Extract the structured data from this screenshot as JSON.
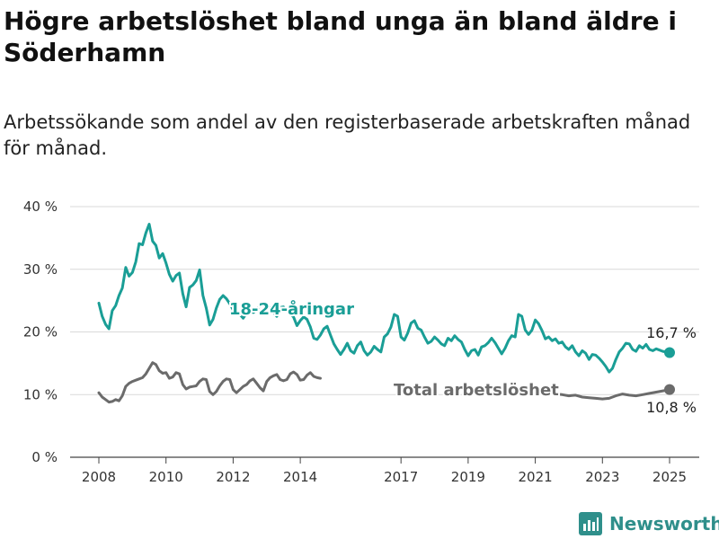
{
  "header": {
    "title": "Högre arbetslöshet bland unga än bland äldre i Söderhamn",
    "subtitle": "Arbetssökande som andel av den registerbaserade arbetskraften månad för månad."
  },
  "logo": {
    "text": "Newsworthy",
    "icon": "bar-chart-icon",
    "color": "#2f8f8b"
  },
  "chart_data": {
    "type": "line",
    "title": "Högre arbetslöshet bland unga än bland äldre i Söderhamn",
    "subtitle": "Arbetssökande som andel av den registerbaserade arbetskraften månad för månad.",
    "ylim": [
      0,
      40
    ],
    "yticks": [
      0,
      10,
      20,
      30,
      40
    ],
    "ytick_labels": [
      "0 %",
      "10 %",
      "20 %",
      "30 %",
      "40 %"
    ],
    "xlim": [
      2008.0,
      2025.0
    ],
    "xticks": [
      2008,
      2010,
      2012,
      2014,
      2017,
      2019,
      2021,
      2023,
      2025
    ],
    "xtick_labels": [
      "2008",
      "2010",
      "2012",
      "2014",
      "2017",
      "2019",
      "2021",
      "2023",
      "2025"
    ],
    "grid": true,
    "legend": "inline",
    "series": [
      {
        "name": "18-24-åringar",
        "color": "#1a9e96",
        "end_label": "16,7 %",
        "points": [
          [
            2008.0,
            24.6
          ],
          [
            2008.1,
            22.5
          ],
          [
            2008.2,
            21.2
          ],
          [
            2008.3,
            20.5
          ],
          [
            2008.4,
            23.4
          ],
          [
            2008.5,
            24.2
          ],
          [
            2008.6,
            25.8
          ],
          [
            2008.7,
            27.0
          ],
          [
            2008.8,
            30.3
          ],
          [
            2008.9,
            28.9
          ],
          [
            2009.0,
            29.5
          ],
          [
            2009.1,
            31.2
          ],
          [
            2009.2,
            34.1
          ],
          [
            2009.3,
            33.9
          ],
          [
            2009.4,
            35.8
          ],
          [
            2009.5,
            37.2
          ],
          [
            2009.6,
            34.5
          ],
          [
            2009.7,
            33.8
          ],
          [
            2009.8,
            31.8
          ],
          [
            2009.9,
            32.5
          ],
          [
            2010.0,
            31.0
          ],
          [
            2010.1,
            29.2
          ],
          [
            2010.2,
            28.1
          ],
          [
            2010.3,
            29.0
          ],
          [
            2010.4,
            29.4
          ],
          [
            2010.5,
            26.1
          ],
          [
            2010.6,
            24.0
          ],
          [
            2010.7,
            27.1
          ],
          [
            2010.8,
            27.5
          ],
          [
            2010.9,
            28.2
          ],
          [
            2011.0,
            29.9
          ],
          [
            2011.1,
            25.8
          ],
          [
            2011.2,
            23.8
          ],
          [
            2011.3,
            21.1
          ],
          [
            2011.4,
            22.0
          ],
          [
            2011.5,
            23.8
          ],
          [
            2011.6,
            25.2
          ],
          [
            2011.7,
            25.8
          ],
          [
            2011.8,
            25.3
          ],
          [
            2011.9,
            24.5
          ],
          [
            2012.0,
            23.5
          ],
          [
            2012.1,
            23.3
          ],
          [
            2012.2,
            22.8
          ],
          [
            2012.3,
            22.2
          ],
          [
            2012.4,
            23.0
          ],
          [
            2012.5,
            23.3
          ],
          [
            2012.6,
            23.1
          ],
          [
            2012.7,
            23.5
          ],
          [
            2012.8,
            24.2
          ],
          [
            2012.9,
            24.6
          ],
          [
            2013.0,
            24.2
          ],
          [
            2013.1,
            23.8
          ],
          [
            2013.2,
            23.1
          ],
          [
            2013.3,
            22.5
          ],
          [
            2013.4,
            23.9
          ],
          [
            2013.5,
            24.0
          ],
          [
            2013.6,
            23.4
          ],
          [
            2013.7,
            22.9
          ],
          [
            2013.8,
            22.4
          ],
          [
            2013.9,
            21.0
          ],
          [
            2014.0,
            21.8
          ],
          [
            2014.1,
            22.4
          ],
          [
            2014.2,
            22.0
          ],
          [
            2014.3,
            20.8
          ],
          [
            2014.4,
            19.0
          ],
          [
            2014.5,
            18.8
          ],
          [
            2014.6,
            19.5
          ],
          [
            2014.7,
            20.5
          ],
          [
            2014.8,
            20.9
          ],
          [
            2014.9,
            19.5
          ],
          [
            2015.0,
            18.1
          ],
          [
            2015.1,
            17.2
          ],
          [
            2015.2,
            16.4
          ],
          [
            2015.3,
            17.2
          ],
          [
            2015.4,
            18.2
          ],
          [
            2015.5,
            17.0
          ],
          [
            2015.6,
            16.6
          ],
          [
            2015.7,
            17.8
          ],
          [
            2015.8,
            18.4
          ],
          [
            2015.9,
            17.0
          ],
          [
            2016.0,
            16.3
          ],
          [
            2016.1,
            16.8
          ],
          [
            2016.2,
            17.7
          ],
          [
            2016.3,
            17.2
          ],
          [
            2016.4,
            16.8
          ],
          [
            2016.5,
            19.2
          ],
          [
            2016.6,
            19.7
          ],
          [
            2016.7,
            20.8
          ],
          [
            2016.8,
            22.8
          ],
          [
            2016.9,
            22.5
          ],
          [
            2017.0,
            19.2
          ],
          [
            2017.1,
            18.7
          ],
          [
            2017.2,
            19.8
          ],
          [
            2017.3,
            21.4
          ],
          [
            2017.4,
            21.8
          ],
          [
            2017.5,
            20.6
          ],
          [
            2017.6,
            20.3
          ],
          [
            2017.7,
            19.2
          ],
          [
            2017.8,
            18.2
          ],
          [
            2017.9,
            18.5
          ],
          [
            2018.0,
            19.2
          ],
          [
            2018.1,
            18.7
          ],
          [
            2018.2,
            18.1
          ],
          [
            2018.3,
            17.8
          ],
          [
            2018.4,
            19.0
          ],
          [
            2018.5,
            18.6
          ],
          [
            2018.6,
            19.4
          ],
          [
            2018.7,
            18.8
          ],
          [
            2018.8,
            18.4
          ],
          [
            2018.9,
            17.2
          ],
          [
            2019.0,
            16.2
          ],
          [
            2019.1,
            17.0
          ],
          [
            2019.2,
            17.2
          ],
          [
            2019.3,
            16.3
          ],
          [
            2019.4,
            17.6
          ],
          [
            2019.5,
            17.8
          ],
          [
            2019.6,
            18.3
          ],
          [
            2019.7,
            19.0
          ],
          [
            2019.8,
            18.3
          ],
          [
            2019.9,
            17.4
          ],
          [
            2020.0,
            16.5
          ],
          [
            2020.1,
            17.4
          ],
          [
            2020.2,
            18.6
          ],
          [
            2020.3,
            19.4
          ],
          [
            2020.4,
            19.2
          ],
          [
            2020.5,
            22.8
          ],
          [
            2020.6,
            22.5
          ],
          [
            2020.7,
            20.3
          ],
          [
            2020.8,
            19.6
          ],
          [
            2020.9,
            20.3
          ],
          [
            2021.0,
            21.9
          ],
          [
            2021.1,
            21.3
          ],
          [
            2021.2,
            20.2
          ],
          [
            2021.3,
            18.9
          ],
          [
            2021.4,
            19.2
          ],
          [
            2021.5,
            18.6
          ],
          [
            2021.6,
            18.9
          ],
          [
            2021.7,
            18.2
          ],
          [
            2021.8,
            18.4
          ],
          [
            2021.9,
            17.6
          ],
          [
            2022.0,
            17.2
          ],
          [
            2022.1,
            17.8
          ],
          [
            2022.2,
            16.8
          ],
          [
            2022.3,
            16.2
          ],
          [
            2022.4,
            17.0
          ],
          [
            2022.5,
            16.6
          ],
          [
            2022.6,
            15.6
          ],
          [
            2022.7,
            16.4
          ],
          [
            2022.8,
            16.3
          ],
          [
            2022.9,
            15.8
          ],
          [
            2023.0,
            15.2
          ],
          [
            2023.1,
            14.5
          ],
          [
            2023.2,
            13.6
          ],
          [
            2023.3,
            14.2
          ],
          [
            2023.4,
            15.6
          ],
          [
            2023.5,
            16.8
          ],
          [
            2023.6,
            17.4
          ],
          [
            2023.7,
            18.2
          ],
          [
            2023.8,
            18.1
          ],
          [
            2023.9,
            17.2
          ],
          [
            2024.0,
            16.9
          ],
          [
            2024.1,
            17.8
          ],
          [
            2024.2,
            17.4
          ],
          [
            2024.3,
            18.0
          ],
          [
            2024.4,
            17.2
          ],
          [
            2024.5,
            17.0
          ],
          [
            2024.6,
            17.3
          ],
          [
            2024.7,
            17.1
          ],
          [
            2024.8,
            16.9
          ],
          [
            2025.0,
            16.7
          ]
        ]
      },
      {
        "name": "Total arbetslöshet",
        "color": "#6b6b6b",
        "end_label": "10,8 %",
        "points": [
          [
            2008.0,
            10.3
          ],
          [
            2008.1,
            9.6
          ],
          [
            2008.2,
            9.2
          ],
          [
            2008.3,
            8.8
          ],
          [
            2008.4,
            8.9
          ],
          [
            2008.5,
            9.2
          ],
          [
            2008.6,
            9.0
          ],
          [
            2008.7,
            9.8
          ],
          [
            2008.8,
            11.3
          ],
          [
            2008.9,
            11.8
          ],
          [
            2009.0,
            12.1
          ],
          [
            2009.1,
            12.3
          ],
          [
            2009.2,
            12.5
          ],
          [
            2009.3,
            12.7
          ],
          [
            2009.4,
            13.3
          ],
          [
            2009.5,
            14.2
          ],
          [
            2009.6,
            15.1
          ],
          [
            2009.7,
            14.8
          ],
          [
            2009.8,
            13.8
          ],
          [
            2009.9,
            13.4
          ],
          [
            2010.0,
            13.5
          ],
          [
            2010.1,
            12.6
          ],
          [
            2010.2,
            12.8
          ],
          [
            2010.3,
            13.5
          ],
          [
            2010.4,
            13.3
          ],
          [
            2010.5,
            11.6
          ],
          [
            2010.6,
            10.9
          ],
          [
            2010.7,
            11.2
          ],
          [
            2010.8,
            11.3
          ],
          [
            2010.9,
            11.4
          ],
          [
            2011.0,
            12.1
          ],
          [
            2011.1,
            12.5
          ],
          [
            2011.2,
            12.4
          ],
          [
            2011.3,
            10.5
          ],
          [
            2011.4,
            10.0
          ],
          [
            2011.5,
            10.5
          ],
          [
            2011.6,
            11.4
          ],
          [
            2011.7,
            12.1
          ],
          [
            2011.8,
            12.5
          ],
          [
            2011.9,
            12.4
          ],
          [
            2012.0,
            10.8
          ],
          [
            2012.1,
            10.3
          ],
          [
            2012.2,
            10.8
          ],
          [
            2012.3,
            11.3
          ],
          [
            2012.4,
            11.6
          ],
          [
            2012.5,
            12.2
          ],
          [
            2012.6,
            12.5
          ],
          [
            2012.7,
            11.8
          ],
          [
            2012.8,
            11.1
          ],
          [
            2012.9,
            10.6
          ],
          [
            2013.0,
            12.1
          ],
          [
            2013.1,
            12.7
          ],
          [
            2013.2,
            13.0
          ],
          [
            2013.3,
            13.2
          ],
          [
            2013.4,
            12.4
          ],
          [
            2013.5,
            12.2
          ],
          [
            2013.6,
            12.4
          ],
          [
            2013.7,
            13.3
          ],
          [
            2013.8,
            13.6
          ],
          [
            2013.9,
            13.2
          ],
          [
            2014.0,
            12.3
          ],
          [
            2014.1,
            12.4
          ],
          [
            2014.2,
            13.1
          ],
          [
            2014.3,
            13.5
          ],
          [
            2014.4,
            12.9
          ],
          [
            2014.5,
            12.7
          ],
          [
            2014.6,
            12.6
          ]
        ],
        "points_b": [
          [
            2020.8,
            10.9
          ],
          [
            2021.0,
            10.7
          ],
          [
            2021.2,
            10.4
          ],
          [
            2021.4,
            10.3
          ],
          [
            2021.6,
            10.1
          ],
          [
            2021.8,
            10.0
          ],
          [
            2022.0,
            9.8
          ],
          [
            2022.2,
            9.9
          ],
          [
            2022.4,
            9.6
          ],
          [
            2022.6,
            9.5
          ],
          [
            2022.8,
            9.4
          ],
          [
            2023.0,
            9.3
          ],
          [
            2023.2,
            9.4
          ],
          [
            2023.4,
            9.8
          ],
          [
            2023.6,
            10.1
          ],
          [
            2023.8,
            9.9
          ],
          [
            2024.0,
            9.8
          ],
          [
            2024.2,
            10.0
          ],
          [
            2024.4,
            10.2
          ],
          [
            2024.6,
            10.4
          ],
          [
            2024.8,
            10.6
          ],
          [
            2025.0,
            10.8
          ]
        ]
      }
    ]
  }
}
